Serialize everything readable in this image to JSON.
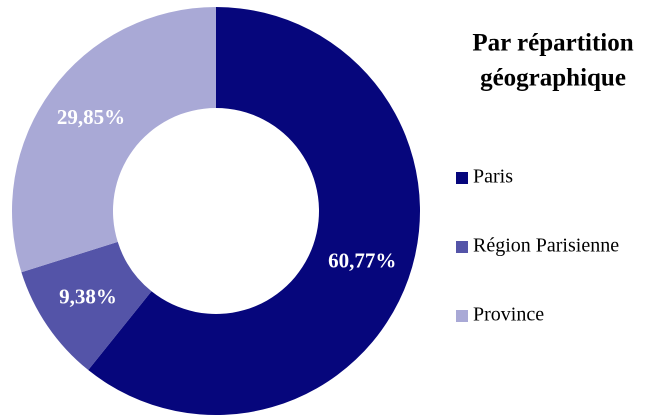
{
  "chart_data": {
    "type": "donut",
    "title": [
      "Par répartition",
      "géographique"
    ],
    "categories": [
      "Paris",
      "Région Parisienne",
      "Province"
    ],
    "values": [
      60.77,
      9.38,
      29.85
    ],
    "value_labels": [
      "60,77%",
      "9,38%",
      "29,85%"
    ],
    "colors": [
      "#06067c",
      "#5454a8",
      "#a9a9d6"
    ],
    "legend": "right"
  }
}
